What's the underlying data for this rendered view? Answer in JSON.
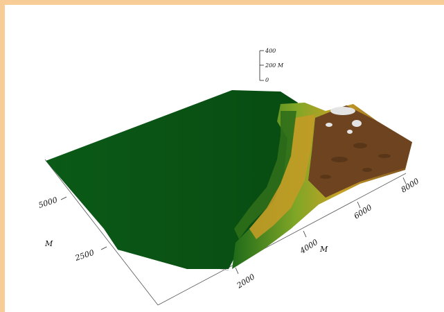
{
  "chart_data": {
    "type": "surface3d",
    "title": "",
    "axes": {
      "depth": {
        "ticks": [
          "5000",
          "2500"
        ],
        "unit_label": "M"
      },
      "width": {
        "ticks": [
          "2000",
          "4000",
          "6000",
          "8000"
        ],
        "unit_label": "M"
      },
      "vertical": {
        "ticks": [
          "400",
          "200 M",
          "0"
        ]
      }
    },
    "elevation_bands": [
      {
        "range": "low",
        "color": "#0a5416"
      },
      {
        "range": "low-mid",
        "color": "#3d7a1c"
      },
      {
        "range": "mid",
        "color": "#a8b42a"
      },
      {
        "range": "mid-high",
        "color": "#c49a24"
      },
      {
        "range": "high",
        "color": "#6e4320"
      },
      {
        "range": "peak",
        "color": "#e2e2e2"
      }
    ]
  }
}
